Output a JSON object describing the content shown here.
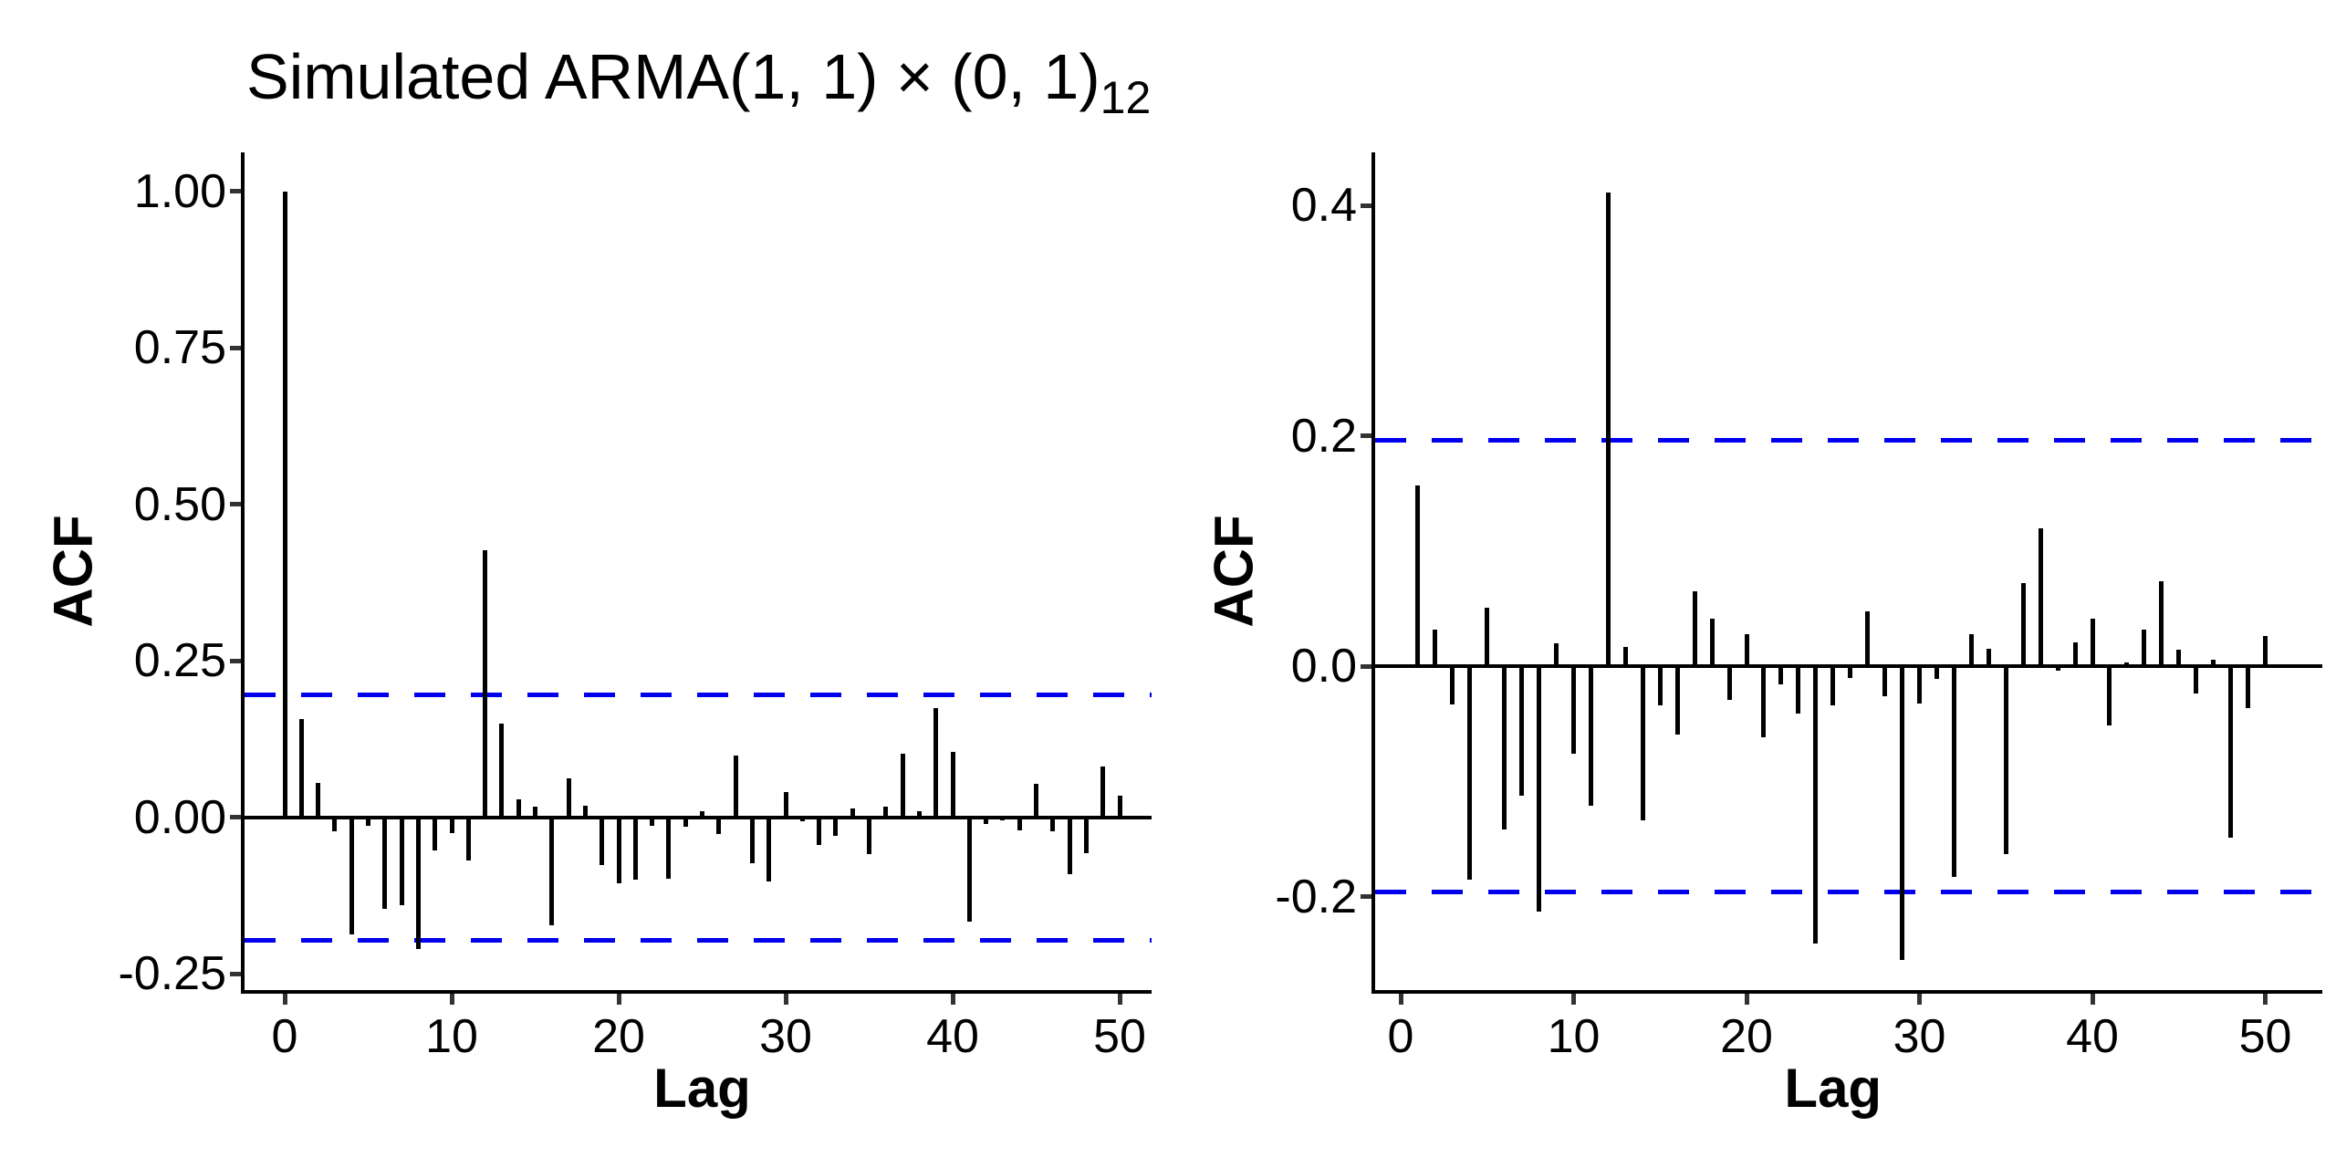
{
  "title": {
    "text": "Simulated ARMA(1, 1) × (0, 1)",
    "subscript": "12"
  },
  "colors": {
    "bar": "#000000",
    "axis": "#000000",
    "tick_mark": "#333333",
    "confidence_line": "#0000EE",
    "text": "#000000",
    "background": "#ffffff"
  },
  "chart_data": [
    {
      "type": "bar",
      "name": "acf-plot-left",
      "title": "Simulated ARMA(1, 1) × (0, 1)_12",
      "xlabel": "Lag",
      "ylabel": "ACF",
      "legend": "none",
      "grid": false,
      "ylim": [
        -0.276,
        1.062
      ],
      "xlim": [
        -2.5,
        52.5
      ],
      "y_ticks": [
        {
          "value": 1.0,
          "label": "1.00"
        },
        {
          "value": 0.75,
          "label": "0.75"
        },
        {
          "value": 0.5,
          "label": "0.50"
        },
        {
          "value": 0.25,
          "label": "0.25"
        },
        {
          "value": 0.0,
          "label": "0.00"
        },
        {
          "value": -0.25,
          "label": "-0.25"
        }
      ],
      "x_ticks": [
        {
          "value": 0,
          "label": "0"
        },
        {
          "value": 10,
          "label": "10"
        },
        {
          "value": 20,
          "label": "20"
        },
        {
          "value": 30,
          "label": "30"
        },
        {
          "value": 40,
          "label": "40"
        },
        {
          "value": 50,
          "label": "50"
        }
      ],
      "confidence_bands": [
        0.196,
        -0.196
      ],
      "lags": [
        0,
        1,
        2,
        3,
        4,
        5,
        6,
        7,
        8,
        9,
        10,
        11,
        12,
        13,
        14,
        15,
        16,
        17,
        18,
        19,
        20,
        21,
        22,
        23,
        24,
        25,
        26,
        27,
        28,
        29,
        30,
        31,
        32,
        33,
        34,
        35,
        36,
        37,
        38,
        39,
        40,
        41,
        42,
        43,
        44,
        45,
        46,
        47,
        48,
        49,
        50
      ],
      "values": [
        1.0,
        0.157,
        0.055,
        -0.022,
        -0.187,
        -0.014,
        -0.147,
        -0.141,
        -0.21,
        -0.053,
        -0.026,
        -0.069,
        0.426,
        0.15,
        0.029,
        0.017,
        -0.173,
        0.062,
        0.019,
        -0.076,
        -0.106,
        -0.1,
        -0.013,
        -0.098,
        -0.015,
        0.01,
        -0.027,
        0.099,
        -0.074,
        -0.103,
        0.041,
        -0.006,
        -0.045,
        -0.03,
        0.014,
        -0.059,
        0.017,
        0.102,
        0.01,
        0.174,
        0.105,
        -0.166,
        -0.011,
        -0.005,
        -0.021,
        0.053,
        -0.023,
        -0.091,
        -0.057,
        0.081,
        0.034
      ]
    },
    {
      "type": "bar",
      "name": "acf-plot-right",
      "title": "",
      "xlabel": "Lag",
      "ylabel": "ACF",
      "legend": "none",
      "grid": false,
      "ylim": [
        -0.281,
        0.446
      ],
      "xlim": [
        -1.5,
        53.5
      ],
      "y_ticks": [
        {
          "value": 0.4,
          "label": "0.4"
        },
        {
          "value": 0.2,
          "label": "0.2"
        },
        {
          "value": 0.0,
          "label": "0.0"
        },
        {
          "value": -0.2,
          "label": "-0.2"
        }
      ],
      "x_ticks": [
        {
          "value": 0,
          "label": "0"
        },
        {
          "value": 10,
          "label": "10"
        },
        {
          "value": 20,
          "label": "20"
        },
        {
          "value": 30,
          "label": "30"
        },
        {
          "value": 40,
          "label": "40"
        },
        {
          "value": 50,
          "label": "50"
        }
      ],
      "confidence_bands": [
        0.196,
        -0.196
      ],
      "lags": [
        1,
        2,
        3,
        4,
        5,
        6,
        7,
        8,
        9,
        10,
        11,
        12,
        13,
        14,
        15,
        16,
        17,
        18,
        19,
        20,
        21,
        22,
        23,
        24,
        25,
        26,
        27,
        28,
        29,
        30,
        31,
        32,
        33,
        34,
        35,
        36,
        37,
        38,
        39,
        40,
        41,
        42,
        43,
        44,
        45,
        46,
        47,
        48,
        49,
        50
      ],
      "values": [
        0.157,
        0.032,
        -0.033,
        -0.185,
        0.051,
        -0.142,
        -0.112,
        -0.213,
        0.02,
        -0.076,
        -0.121,
        0.411,
        0.017,
        -0.134,
        -0.034,
        -0.059,
        0.065,
        0.041,
        -0.029,
        0.028,
        -0.062,
        -0.016,
        -0.041,
        -0.241,
        -0.034,
        -0.01,
        0.048,
        -0.026,
        -0.255,
        -0.032,
        -0.011,
        -0.183,
        0.028,
        0.015,
        -0.163,
        0.072,
        0.12,
        -0.004,
        0.021,
        0.041,
        -0.051,
        0.003,
        0.032,
        0.074,
        0.014,
        -0.024,
        0.006,
        -0.149,
        -0.036,
        0.026
      ]
    }
  ]
}
